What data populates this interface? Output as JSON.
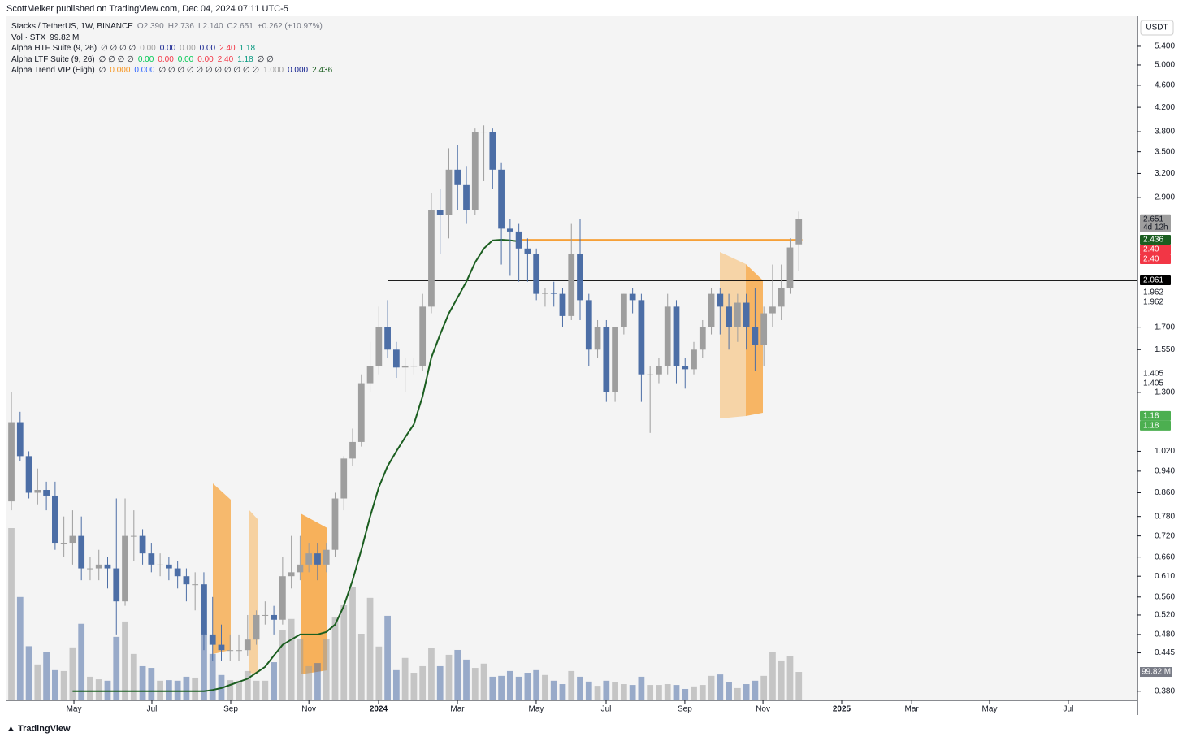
{
  "header": {
    "publisher": "ScottMelker published on TradingView.com, Dec 04, 2024 07:11 UTC-5"
  },
  "legend": [
    [
      {
        "text": "Stacks / TetherUS, 1W, BINANCE",
        "color": "#131722"
      },
      {
        "text": "O2.390",
        "color": "#787b86"
      },
      {
        "text": "H2.736",
        "color": "#787b86"
      },
      {
        "text": "L2.140",
        "color": "#787b86"
      },
      {
        "text": "C2.651",
        "color": "#787b86"
      },
      {
        "text": "+0.262 (+10.97%)",
        "color": "#787b86"
      }
    ],
    [
      {
        "text": "Vol · STX",
        "color": "#131722"
      },
      {
        "text": "99.82 M",
        "color": "#131722"
      }
    ],
    [
      {
        "text": "Alpha HTF Suite (9, 26)",
        "color": "#131722"
      },
      {
        "text": "∅ ∅ ∅ ∅",
        "color": "#131722"
      },
      {
        "text": "0.00",
        "color": "#9e9e9e"
      },
      {
        "text": "0.00",
        "color": "#0d1b8c"
      },
      {
        "text": "0.00",
        "color": "#9e9e9e"
      },
      {
        "text": "0.00",
        "color": "#0d1b8c"
      },
      {
        "text": "2.40",
        "color": "#f23645"
      },
      {
        "text": "1.18",
        "color": "#089981"
      }
    ],
    [
      {
        "text": "Alpha LTF Suite (9, 26)",
        "color": "#131722"
      },
      {
        "text": "∅ ∅ ∅ ∅",
        "color": "#131722"
      },
      {
        "text": "0.00",
        "color": "#00c853"
      },
      {
        "text": "0.00",
        "color": "#f23645"
      },
      {
        "text": "0.00",
        "color": "#00c853"
      },
      {
        "text": "0.00",
        "color": "#f23645"
      },
      {
        "text": "2.40",
        "color": "#f23645"
      },
      {
        "text": "1.18",
        "color": "#089981"
      },
      {
        "text": "∅ ∅",
        "color": "#131722"
      }
    ],
    [
      {
        "text": "Alpha Trend VIP (High)",
        "color": "#131722"
      },
      {
        "text": "∅",
        "color": "#131722"
      },
      {
        "text": "0.000",
        "color": "#f7941d"
      },
      {
        "text": "0.000",
        "color": "#2962ff"
      },
      {
        "text": "∅ ∅ ∅ ∅ ∅ ∅ ∅ ∅ ∅ ∅ ∅",
        "color": "#131722"
      },
      {
        "text": "1.000",
        "color": "#9e9e9e"
      },
      {
        "text": "0.000",
        "color": "#0d1b8c"
      },
      {
        "text": "2.436",
        "color": "#1b5e20"
      }
    ]
  ],
  "chart_data": {
    "type": "candlestick",
    "currency": "USDT",
    "log_scale": true,
    "up_color": "#9e9e9e",
    "down_color": "#4c6ea6",
    "trend_color": "#1b5e20",
    "open": [
      0.83,
      1.15,
      1.0,
      0.86,
      0.87,
      0.85,
      0.7,
      0.7,
      0.72,
      0.63,
      0.63,
      0.64,
      0.63,
      0.55,
      0.72,
      0.72,
      0.67,
      0.64,
      0.64,
      0.63,
      0.61,
      0.59,
      0.59,
      0.48,
      0.46,
      0.45,
      0.45,
      0.45,
      0.47,
      0.52,
      0.52,
      0.51,
      0.61,
      0.62,
      0.64,
      0.67,
      0.64,
      0.68,
      0.84,
      0.99,
      1.06,
      1.35,
      1.45,
      1.7,
      1.55,
      1.44,
      1.45,
      1.45,
      1.85,
      2.75,
      2.7,
      3.25,
      3.05,
      2.75,
      3.8,
      3.8,
      3.25,
      2.55,
      2.52,
      2.35,
      2.3,
      1.95,
      1.96,
      1.95,
      1.78,
      2.3,
      1.9,
      1.55,
      1.7,
      1.3,
      1.7,
      1.95,
      1.9,
      1.4,
      1.4,
      1.45,
      1.85,
      1.45,
      1.43,
      1.55,
      1.7,
      1.95,
      1.85,
      1.7,
      1.88,
      1.7,
      1.58,
      1.8,
      1.85,
      2.0,
      2.39
    ],
    "high": [
      1.3,
      1.2,
      1.02,
      0.95,
      0.9,
      0.9,
      0.78,
      0.8,
      0.78,
      0.66,
      0.68,
      0.66,
      0.84,
      0.84,
      0.8,
      0.74,
      0.7,
      0.67,
      0.66,
      0.65,
      0.63,
      0.62,
      0.62,
      0.56,
      0.5,
      0.48,
      0.48,
      0.52,
      0.53,
      0.55,
      0.54,
      0.66,
      0.72,
      0.72,
      0.7,
      0.7,
      0.7,
      0.86,
      1.0,
      1.12,
      1.4,
      1.6,
      1.85,
      1.9,
      1.6,
      1.5,
      1.5,
      1.95,
      2.95,
      3.0,
      3.55,
      3.6,
      3.3,
      3.85,
      3.9,
      3.85,
      3.35,
      2.65,
      2.6,
      2.45,
      2.35,
      2.0,
      2.05,
      2.0,
      2.6,
      2.65,
      1.95,
      1.75,
      1.75,
      1.7,
      1.95,
      2.0,
      1.95,
      1.45,
      1.5,
      1.95,
      1.9,
      1.5,
      1.6,
      1.75,
      2.0,
      2.0,
      1.95,
      1.95,
      1.95,
      2.0,
      1.85,
      2.2,
      2.2,
      2.45,
      2.736
    ],
    "low": [
      0.8,
      0.98,
      0.84,
      0.82,
      0.8,
      0.68,
      0.66,
      0.64,
      0.6,
      0.6,
      0.6,
      0.58,
      0.48,
      0.54,
      0.65,
      0.64,
      0.62,
      0.61,
      0.6,
      0.58,
      0.55,
      0.53,
      0.45,
      0.43,
      0.43,
      0.43,
      0.43,
      0.44,
      0.46,
      0.5,
      0.48,
      0.5,
      0.58,
      0.6,
      0.62,
      0.6,
      0.62,
      0.66,
      0.8,
      0.96,
      1.04,
      1.3,
      1.4,
      1.5,
      1.38,
      1.3,
      1.4,
      1.42,
      1.8,
      2.3,
      2.45,
      2.75,
      2.6,
      2.7,
      3.1,
      3.0,
      2.2,
      2.1,
      2.05,
      2.05,
      1.9,
      1.85,
      1.85,
      1.7,
      1.75,
      1.75,
      1.45,
      1.5,
      1.25,
      1.25,
      1.65,
      1.8,
      1.25,
      1.1,
      1.35,
      1.4,
      1.35,
      1.32,
      1.4,
      1.5,
      1.65,
      1.65,
      1.55,
      1.6,
      1.55,
      1.42,
      1.45,
      1.7,
      1.75,
      1.95,
      2.14
    ],
    "close": [
      1.15,
      1.0,
      0.86,
      0.87,
      0.85,
      0.7,
      0.7,
      0.72,
      0.63,
      0.63,
      0.64,
      0.63,
      0.55,
      0.72,
      0.72,
      0.67,
      0.64,
      0.64,
      0.63,
      0.61,
      0.59,
      0.59,
      0.48,
      0.46,
      0.45,
      0.45,
      0.45,
      0.47,
      0.52,
      0.52,
      0.51,
      0.61,
      0.62,
      0.64,
      0.67,
      0.64,
      0.68,
      0.84,
      0.99,
      1.06,
      1.35,
      1.45,
      1.7,
      1.55,
      1.44,
      1.45,
      1.45,
      1.85,
      2.75,
      2.7,
      3.25,
      3.05,
      2.75,
      3.8,
      3.8,
      3.25,
      2.55,
      2.52,
      2.35,
      2.3,
      1.95,
      1.96,
      1.95,
      1.78,
      2.3,
      1.9,
      1.55,
      1.7,
      1.3,
      1.7,
      1.95,
      1.9,
      1.4,
      1.4,
      1.45,
      1.85,
      1.45,
      1.43,
      1.55,
      1.7,
      1.95,
      1.85,
      1.7,
      1.88,
      1.7,
      1.58,
      1.8,
      1.85,
      2.0,
      2.36,
      2.651
    ],
    "volume": [
      605,
      363,
      190,
      126,
      171,
      106,
      103,
      186,
      269,
      83,
      74,
      69,
      223,
      277,
      163,
      120,
      114,
      69,
      71,
      69,
      83,
      80,
      234,
      163,
      89,
      71,
      69,
      103,
      69,
      69,
      134,
      246,
      286,
      214,
      120,
      131,
      214,
      291,
      334,
      397,
      234,
      360,
      189,
      297,
      106,
      149,
      97,
      120,
      183,
      120,
      160,
      177,
      143,
      114,
      129,
      83,
      86,
      103,
      83,
      97,
      106,
      89,
      69,
      57,
      103,
      83,
      66,
      51,
      69,
      63,
      57,
      54,
      83,
      54,
      54,
      57,
      54,
      40,
      49,
      54,
      86,
      91,
      63,
      43,
      57,
      69,
      86,
      169,
      140,
      157,
      99.82
    ],
    "volume_label": "99.82 M",
    "trend": [
      null,
      null,
      null,
      null,
      null,
      null,
      null,
      0.38,
      0.38,
      0.38,
      0.38,
      0.38,
      0.38,
      0.38,
      0.38,
      0.38,
      0.38,
      0.38,
      0.38,
      0.38,
      0.38,
      0.38,
      0.38,
      0.382,
      0.385,
      0.39,
      0.395,
      0.4,
      0.41,
      0.42,
      0.44,
      0.46,
      0.47,
      0.48,
      0.48,
      0.48,
      0.485,
      0.5,
      0.54,
      0.6,
      0.68,
      0.78,
      0.88,
      0.96,
      1.02,
      1.08,
      1.14,
      1.28,
      1.5,
      1.65,
      1.8,
      1.92,
      2.05,
      2.22,
      2.35,
      2.43,
      2.436,
      2.43,
      2.42,
      null,
      null,
      null,
      null,
      null,
      null,
      null,
      null,
      null,
      null,
      null,
      null,
      null,
      null,
      null,
      null,
      null,
      null,
      null,
      null,
      null,
      null,
      null,
      null,
      null,
      null,
      null,
      null,
      null,
      null,
      null,
      null,
      null
    ],
    "levels": [
      {
        "value": 2.436,
        "color": "#f7941d",
        "start": 58
      },
      {
        "value": 2.061,
        "color": "#000000",
        "start": 43
      }
    ],
    "price_labels": [
      {
        "value": 2.651,
        "label": "2.651",
        "sub": "4d 12h",
        "bg": "#9e9e9e",
        "fg": "#131722"
      },
      {
        "value": 2.436,
        "label": "2.436",
        "bg": "#1b5e20",
        "fg": "#ffffff"
      },
      {
        "value": 2.4,
        "label": "2.40",
        "bg": "#f23645",
        "fg": "#ffffff"
      },
      {
        "value": 2.4,
        "label": "2.40",
        "bg": "#f23645",
        "fg": "#ffffff"
      },
      {
        "value": 2.061,
        "label": "2.061",
        "bg": "#000000",
        "fg": "#ffffff"
      },
      {
        "value": 1.962,
        "label": "1.962",
        "bg": "#ffffff",
        "fg": "#131722"
      },
      {
        "value": 1.962,
        "label": "1.962",
        "bg": "#ffffff",
        "fg": "#131722"
      },
      {
        "value": 1.405,
        "label": "1.405",
        "bg": "#ffffff",
        "fg": "#131722"
      },
      {
        "value": 1.405,
        "label": "1.405",
        "bg": "#ffffff",
        "fg": "#131722"
      },
      {
        "value": 1.18,
        "label": "1.18",
        "bg": "#4caf50",
        "fg": "#ffffff"
      },
      {
        "value": 1.18,
        "label": "1.18",
        "bg": "#4caf50",
        "fg": "#ffffff"
      }
    ],
    "ylim": [
      0.366,
      6.11
    ],
    "yticks": [
      {
        "value": 5.4,
        "label": "5.400"
      },
      {
        "value": 5,
        "label": "5.000"
      },
      {
        "value": 4.6,
        "label": "4.600"
      },
      {
        "value": 4.2,
        "label": "4.200"
      },
      {
        "value": 3.8,
        "label": "3.800"
      },
      {
        "value": 3.5,
        "label": "3.500"
      },
      {
        "value": 3.2,
        "label": "3.200"
      },
      {
        "value": 2.9,
        "label": "2.900"
      },
      {
        "value": 1.7,
        "label": "1.700"
      },
      {
        "value": 1.55,
        "label": "1.550"
      },
      {
        "value": 1.3,
        "label": "1.300"
      },
      {
        "value": 1.02,
        "label": "1.020"
      },
      {
        "value": 0.94,
        "label": "0.940"
      },
      {
        "value": 0.86,
        "label": "0.860"
      },
      {
        "value": 0.78,
        "label": "0.780"
      },
      {
        "value": 0.72,
        "label": "0.720"
      },
      {
        "value": 0.66,
        "label": "0.660"
      },
      {
        "value": 0.61,
        "label": "0.610"
      },
      {
        "value": 0.56,
        "label": "0.560"
      },
      {
        "value": 0.52,
        "label": "0.520"
      },
      {
        "value": 0.48,
        "label": "0.480"
      },
      {
        "value": 0.445,
        "label": "0.445"
      },
      {
        "value": 0.38,
        "label": "0.380"
      }
    ],
    "xlim": [
      -0.56,
      128.7
    ],
    "xticks": [
      {
        "value": 7.15,
        "label": "May"
      },
      {
        "value": 16.06,
        "label": "Jul"
      },
      {
        "value": 25.07,
        "label": "Sep"
      },
      {
        "value": 34.0,
        "label": "Nov"
      },
      {
        "value": 41.97,
        "label": "2024"
      },
      {
        "value": 50.98,
        "label": "Mar"
      },
      {
        "value": 59.98,
        "label": "May"
      },
      {
        "value": 67.97,
        "label": "Jul"
      },
      {
        "value": 76.97,
        "label": "Sep"
      },
      {
        "value": 85.9,
        "label": "Nov"
      },
      {
        "value": 94.9,
        "label": "2025"
      },
      {
        "value": 102.9,
        "label": "Mar"
      },
      {
        "value": 111.8,
        "label": "May"
      },
      {
        "value": 120.8,
        "label": "Jul"
      }
    ]
  },
  "footer": {
    "brand": "TradingView"
  }
}
